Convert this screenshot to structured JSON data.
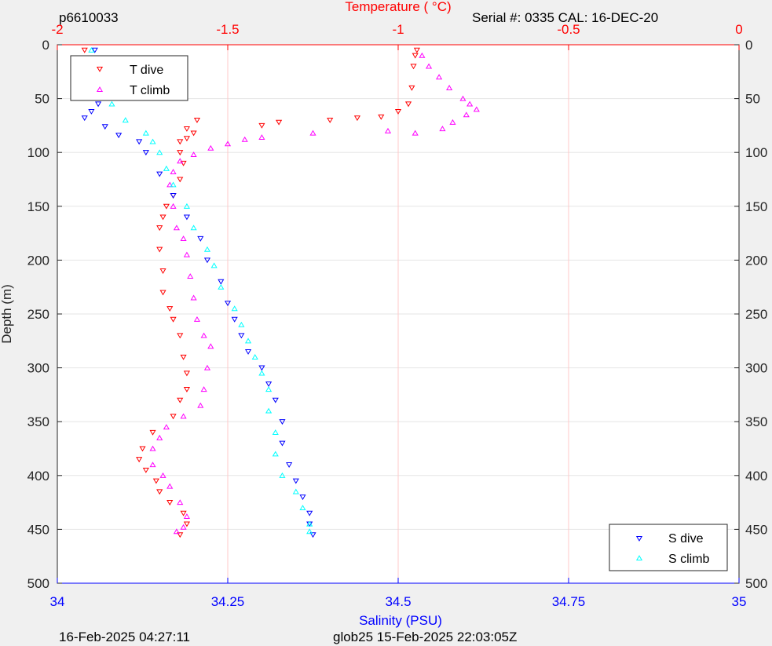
{
  "header": {
    "left_label": "p6610033",
    "serial_label": "Serial #: 0335  CAL: 16-DEC-20"
  },
  "footer": {
    "left_timestamp": "16-Feb-2025 04:27:11",
    "center_label": "glob25 15-Feb-2025 22:03:05Z"
  },
  "colors": {
    "t_dive": "#ff0000",
    "t_climb": "#ff00ff",
    "s_dive": "#0000ff",
    "s_climb": "#00ffff",
    "top_axis": "#ff0000",
    "bottom_axis": "#0000ff",
    "grid_top": "#ffc8c8",
    "grid_horizontal": "#e6e6e6"
  },
  "chart_data": {
    "type": "scatter",
    "ylabel": "Depth (m)",
    "ylim": [
      0,
      500
    ],
    "y_reversed": true,
    "y_ticks": [
      "0",
      "50",
      "100",
      "150",
      "200",
      "250",
      "300",
      "350",
      "400",
      "450",
      "500"
    ],
    "top_axis": {
      "label": "Temperature (    °C)",
      "range": [
        -2,
        0
      ],
      "ticks": [
        "-2",
        "-1.5",
        "-1",
        "-0.5",
        "0"
      ]
    },
    "bottom_axis": {
      "label": "Salinity (PSU)",
      "range": [
        34,
        35
      ],
      "ticks": [
        "34",
        "34.25",
        "34.5",
        "34.75",
        "35"
      ]
    },
    "legend_top_left": [
      "T dive",
      "T climb"
    ],
    "legend_bottom_right": [
      "S dive",
      "S climb"
    ],
    "series": [
      {
        "name": "T dive",
        "axis": "top",
        "marker": "triangle-down",
        "points": [
          [
            -1.92,
            5
          ],
          [
            -1.92,
            25
          ],
          [
            -1.91,
            30
          ],
          [
            -1.9,
            32
          ],
          [
            -1.9,
            35
          ],
          [
            -1.59,
            70
          ],
          [
            -1.62,
            78
          ],
          [
            -1.6,
            82
          ],
          [
            -1.4,
            75
          ],
          [
            -1.35,
            72
          ],
          [
            -1.2,
            70
          ],
          [
            -1.12,
            68
          ],
          [
            -1.05,
            67
          ],
          [
            -1.0,
            62
          ],
          [
            -0.97,
            55
          ],
          [
            -0.96,
            40
          ],
          [
            -0.955,
            20
          ],
          [
            -0.95,
            10
          ],
          [
            -0.945,
            5
          ],
          [
            -1.62,
            87
          ],
          [
            -1.64,
            90
          ],
          [
            -1.64,
            100
          ],
          [
            -1.63,
            110
          ],
          [
            -1.64,
            125
          ],
          [
            -1.66,
            140
          ],
          [
            -1.68,
            150
          ],
          [
            -1.69,
            160
          ],
          [
            -1.7,
            170
          ],
          [
            -1.7,
            190
          ],
          [
            -1.69,
            210
          ],
          [
            -1.69,
            230
          ],
          [
            -1.67,
            245
          ],
          [
            -1.66,
            255
          ],
          [
            -1.64,
            270
          ],
          [
            -1.63,
            290
          ],
          [
            -1.62,
            305
          ],
          [
            -1.62,
            320
          ],
          [
            -1.64,
            330
          ],
          [
            -1.66,
            345
          ],
          [
            -1.72,
            360
          ],
          [
            -1.75,
            375
          ],
          [
            -1.76,
            385
          ],
          [
            -1.74,
            395
          ],
          [
            -1.71,
            405
          ],
          [
            -1.7,
            415
          ],
          [
            -1.67,
            425
          ],
          [
            -1.63,
            435
          ],
          [
            -1.62,
            445
          ],
          [
            -1.64,
            455
          ]
        ]
      },
      {
        "name": "T climb",
        "axis": "top",
        "marker": "triangle-up",
        "points": [
          [
            -0.93,
            10
          ],
          [
            -0.91,
            20
          ],
          [
            -0.88,
            30
          ],
          [
            -0.85,
            40
          ],
          [
            -0.81,
            50
          ],
          [
            -0.79,
            55
          ],
          [
            -0.77,
            60
          ],
          [
            -0.8,
            65
          ],
          [
            -0.84,
            72
          ],
          [
            -0.87,
            78
          ],
          [
            -0.95,
            82
          ],
          [
            -1.03,
            80
          ],
          [
            -1.25,
            82
          ],
          [
            -1.4,
            86
          ],
          [
            -1.45,
            88
          ],
          [
            -1.5,
            92
          ],
          [
            -1.55,
            96
          ],
          [
            -1.6,
            102
          ],
          [
            -1.64,
            108
          ],
          [
            -1.66,
            118
          ],
          [
            -1.67,
            130
          ],
          [
            -1.66,
            150
          ],
          [
            -1.65,
            170
          ],
          [
            -1.63,
            180
          ],
          [
            -1.62,
            195
          ],
          [
            -1.61,
            215
          ],
          [
            -1.6,
            235
          ],
          [
            -1.59,
            255
          ],
          [
            -1.57,
            270
          ],
          [
            -1.55,
            280
          ],
          [
            -1.56,
            300
          ],
          [
            -1.57,
            320
          ],
          [
            -1.58,
            335
          ],
          [
            -1.63,
            345
          ],
          [
            -1.68,
            355
          ],
          [
            -1.7,
            365
          ],
          [
            -1.72,
            375
          ],
          [
            -1.72,
            390
          ],
          [
            -1.69,
            400
          ],
          [
            -1.67,
            410
          ],
          [
            -1.64,
            425
          ],
          [
            -1.62,
            438
          ],
          [
            -1.63,
            448
          ],
          [
            -1.65,
            452
          ]
        ]
      },
      {
        "name": "S dive",
        "axis": "bottom",
        "marker": "triangle-down",
        "points": [
          [
            34.055,
            5
          ],
          [
            34.055,
            30
          ],
          [
            34.057,
            45
          ],
          [
            34.06,
            55
          ],
          [
            34.05,
            62
          ],
          [
            34.04,
            68
          ],
          [
            34.07,
            76
          ],
          [
            34.09,
            84
          ],
          [
            34.12,
            90
          ],
          [
            34.13,
            100
          ],
          [
            34.15,
            120
          ],
          [
            34.17,
            140
          ],
          [
            34.19,
            160
          ],
          [
            34.21,
            180
          ],
          [
            34.22,
            200
          ],
          [
            34.24,
            220
          ],
          [
            34.25,
            240
          ],
          [
            34.26,
            255
          ],
          [
            34.27,
            270
          ],
          [
            34.28,
            285
          ],
          [
            34.3,
            300
          ],
          [
            34.31,
            315
          ],
          [
            34.32,
            330
          ],
          [
            34.33,
            350
          ],
          [
            34.33,
            370
          ],
          [
            34.34,
            390
          ],
          [
            34.35,
            405
          ],
          [
            34.36,
            420
          ],
          [
            34.37,
            435
          ],
          [
            34.37,
            445
          ],
          [
            34.375,
            455
          ]
        ]
      },
      {
        "name": "S climb",
        "axis": "bottom",
        "marker": "triangle-up",
        "points": [
          [
            34.05,
            5
          ],
          [
            34.055,
            20
          ],
          [
            34.06,
            30
          ],
          [
            34.07,
            45
          ],
          [
            34.08,
            55
          ],
          [
            34.1,
            70
          ],
          [
            34.13,
            82
          ],
          [
            34.14,
            90
          ],
          [
            34.15,
            100
          ],
          [
            34.16,
            115
          ],
          [
            34.17,
            130
          ],
          [
            34.19,
            150
          ],
          [
            34.2,
            170
          ],
          [
            34.22,
            190
          ],
          [
            34.23,
            205
          ],
          [
            34.24,
            225
          ],
          [
            34.26,
            245
          ],
          [
            34.27,
            260
          ],
          [
            34.28,
            275
          ],
          [
            34.29,
            290
          ],
          [
            34.3,
            305
          ],
          [
            34.31,
            320
          ],
          [
            34.31,
            340
          ],
          [
            34.32,
            360
          ],
          [
            34.32,
            380
          ],
          [
            34.33,
            400
          ],
          [
            34.35,
            415
          ],
          [
            34.36,
            430
          ],
          [
            34.37,
            445
          ],
          [
            34.37,
            452
          ]
        ]
      }
    ]
  }
}
